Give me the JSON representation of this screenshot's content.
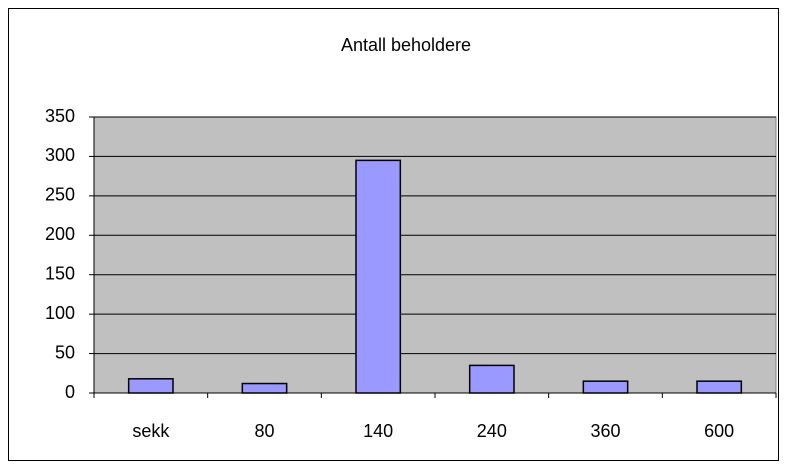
{
  "chart_data": {
    "type": "bar",
    "title": "Antall beholdere",
    "categories": [
      "sekk",
      "80",
      "140",
      "240",
      "360",
      "600"
    ],
    "values": [
      18,
      12,
      295,
      35,
      15,
      15
    ],
    "color": "#9999ff",
    "plot_background": "#c0c0c0",
    "ylim": [
      0,
      350
    ],
    "yticks": [
      0,
      50,
      100,
      150,
      200,
      250,
      300,
      350
    ],
    "grid": true
  }
}
